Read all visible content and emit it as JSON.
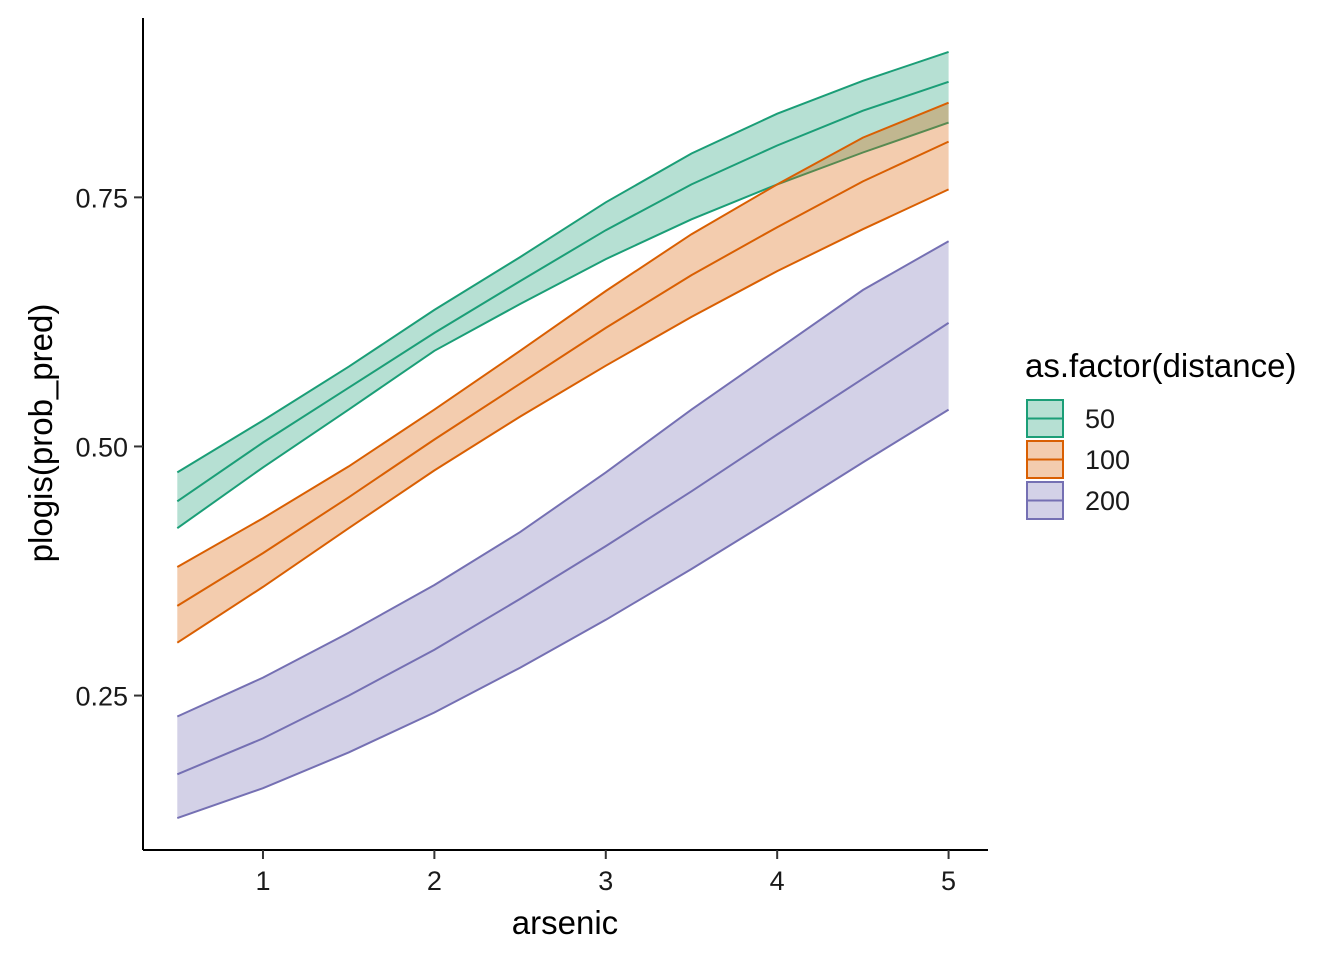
{
  "chart_data": {
    "type": "area",
    "title": "",
    "xlabel": "arsenic",
    "ylabel": "plogis(prob_pred)",
    "xlim": [
      0.3,
      5.23
    ],
    "ylim": [
      0.095,
      0.93
    ],
    "xticks": [
      1,
      2,
      3,
      4,
      5
    ],
    "xtick_labels": [
      "1",
      "2",
      "3",
      "4",
      "5"
    ],
    "yticks": [
      0.25,
      0.5,
      0.75
    ],
    "ytick_labels": [
      "0.25",
      "0.50",
      "0.75"
    ],
    "grid": false,
    "legend": {
      "title": "as.factor(distance)",
      "placement": "right"
    },
    "x": [
      0.5,
      1,
      1.5,
      2,
      2.5,
      3,
      3.5,
      4,
      4.5,
      5
    ],
    "series": [
      {
        "name": "50",
        "color": "#1B9E77",
        "fill": "#B3E0D3",
        "fit": [
          0.445,
          0.504,
          0.559,
          0.614,
          0.666,
          0.717,
          0.763,
          0.802,
          0.837,
          0.866
        ],
        "lower": [
          0.418,
          0.479,
          0.537,
          0.596,
          0.643,
          0.688,
          0.728,
          0.763,
          0.795,
          0.825
        ],
        "upper": [
          0.474,
          0.526,
          0.58,
          0.637,
          0.69,
          0.745,
          0.794,
          0.834,
          0.867,
          0.896
        ]
      },
      {
        "name": "100",
        "color": "#D95F02",
        "fill": "#F4C7A4",
        "fit": [
          0.34,
          0.393,
          0.449,
          0.507,
          0.563,
          0.619,
          0.672,
          0.72,
          0.766,
          0.806
        ],
        "lower": [
          0.303,
          0.359,
          0.418,
          0.476,
          0.53,
          0.581,
          0.63,
          0.676,
          0.718,
          0.758
        ],
        "upper": [
          0.379,
          0.428,
          0.48,
          0.537,
          0.596,
          0.656,
          0.713,
          0.763,
          0.81,
          0.845
        ]
      },
      {
        "name": "200",
        "color": "#7570B3",
        "fill": "#D5D4EA",
        "fit": [
          0.171,
          0.207,
          0.25,
          0.296,
          0.347,
          0.4,
          0.455,
          0.512,
          0.568,
          0.624
        ],
        "lower": [
          0.127,
          0.157,
          0.193,
          0.233,
          0.278,
          0.326,
          0.377,
          0.43,
          0.484,
          0.537
        ],
        "upper": [
          0.229,
          0.268,
          0.313,
          0.361,
          0.414,
          0.474,
          0.537,
          0.597,
          0.657,
          0.706
        ]
      }
    ]
  }
}
